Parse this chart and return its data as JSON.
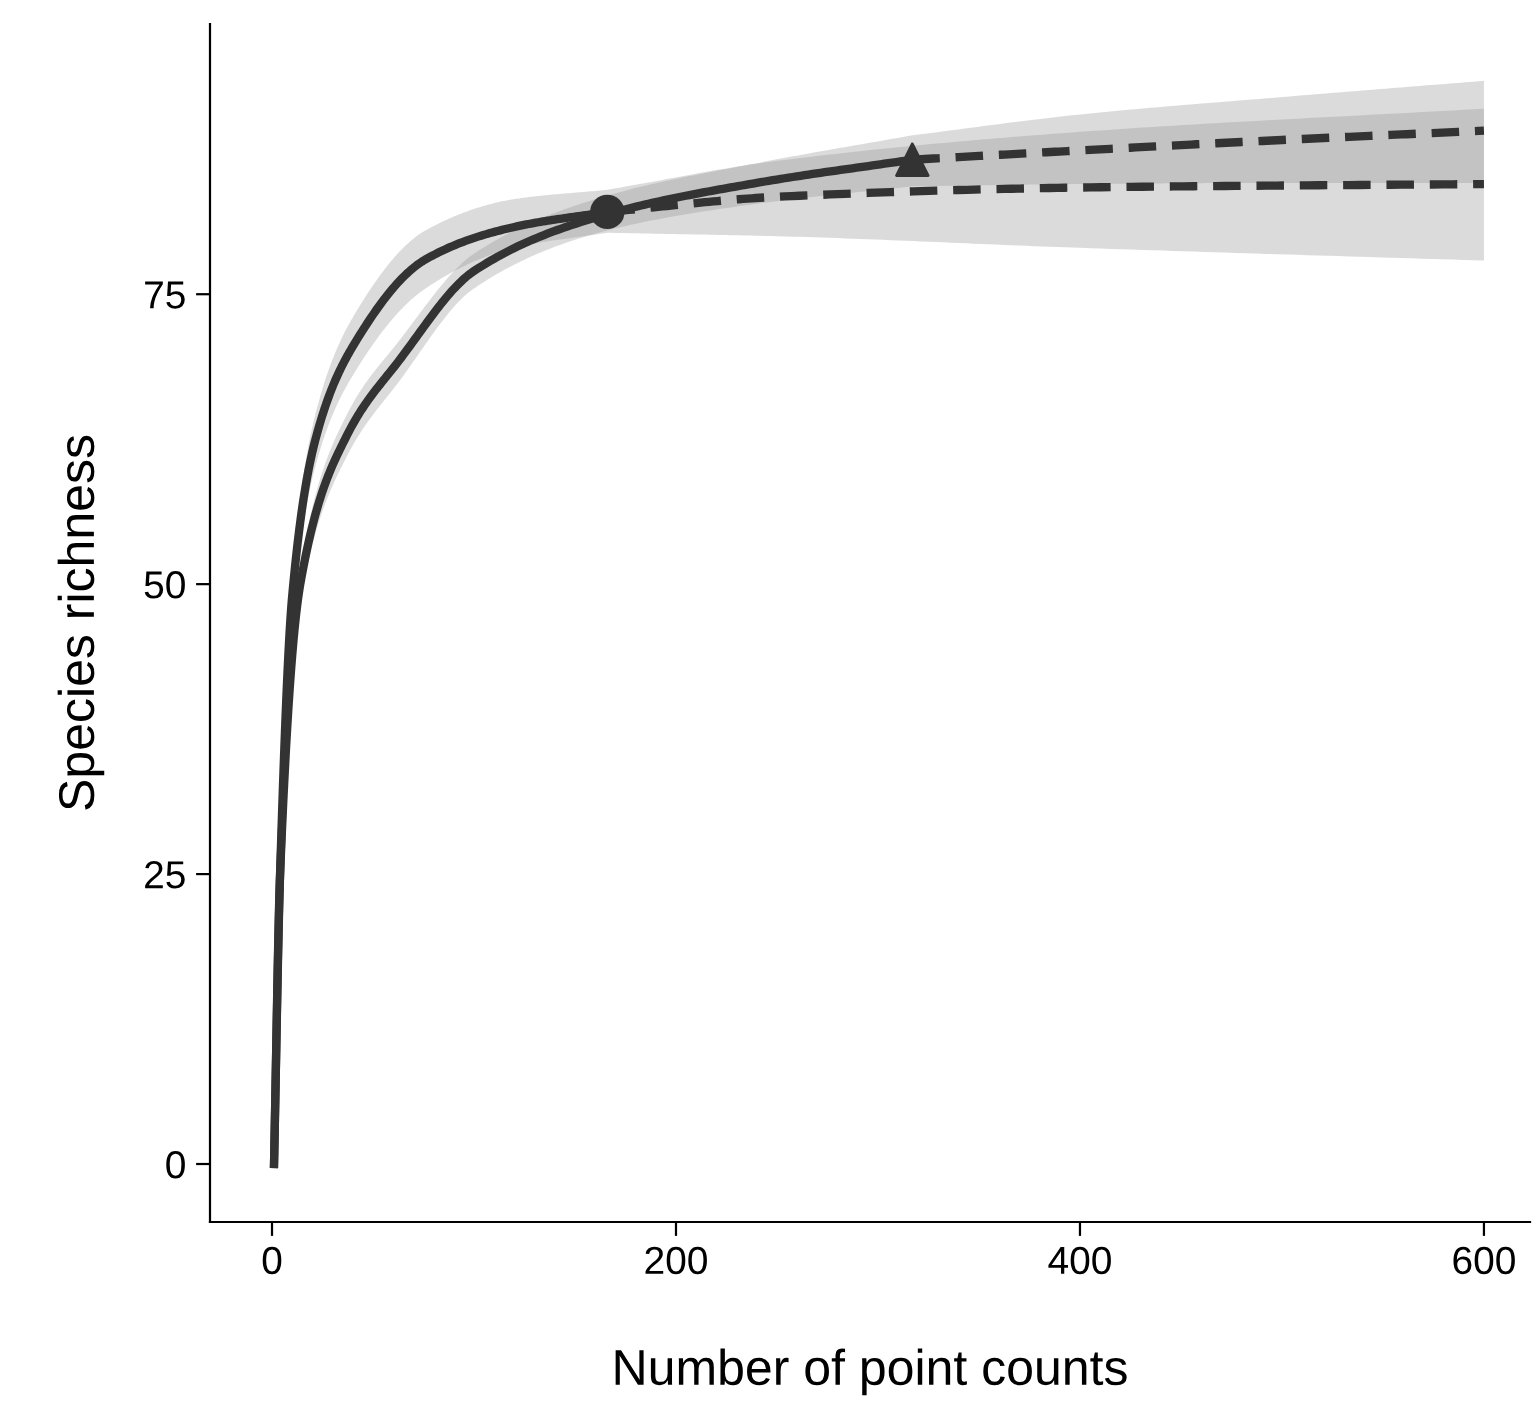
{
  "chart_data": {
    "type": "line",
    "xlabel": "Number of point counts",
    "ylabel": "Species richness",
    "xlim": [
      -30.7,
      622.8
    ],
    "ylim": [
      -5,
      98.3
    ],
    "xticks": [
      0,
      200,
      400,
      600
    ],
    "yticks": [
      0,
      25,
      50,
      75
    ],
    "grid": false,
    "legend": false,
    "series": [
      {
        "color": "#333333",
        "line_style": "solid",
        "x": [
          1,
          4,
          10,
          22,
          40,
          76,
          120,
          166
        ],
        "values": [
          0,
          25,
          49,
          62.8,
          70.5,
          78,
          80.8,
          82.1
        ],
        "lower": [
          0,
          24,
          47,
          60.5,
          68,
          75.5,
          79,
          80.3
        ],
        "upper": [
          0,
          26,
          51,
          65,
          73,
          80.5,
          83.2,
          84
        ]
      },
      {
        "color": "#333333",
        "line_style": "dashed",
        "x": [
          166,
          250,
          400,
          600
        ],
        "values": [
          82.1,
          83.4,
          84.2,
          84.5
        ],
        "lower": [
          80.3,
          80,
          79,
          77.9
        ],
        "upper": [
          84,
          86.5,
          89,
          91
        ]
      },
      {
        "color": "#333333",
        "line_style": "solid",
        "x": [
          1,
          4,
          14,
          37,
          63,
          100,
          166,
          240,
          317
        ],
        "values": [
          0,
          25,
          50,
          62.8,
          69.3,
          77,
          81.9,
          84.6,
          86.6
        ],
        "lower": [
          0,
          24,
          48.5,
          61,
          67.5,
          75.5,
          80.5,
          82.8,
          84.3
        ],
        "upper": [
          0,
          26,
          51.5,
          64.6,
          71,
          78.5,
          83.5,
          86.3,
          88.7
        ]
      },
      {
        "color": "#333333",
        "line_style": "dashed",
        "x": [
          317,
          400,
          500,
          600
        ],
        "values": [
          86.6,
          87.4,
          88.3,
          89.1
        ],
        "lower": [
          84.3,
          84.5,
          84.6,
          84.6
        ],
        "upper": [
          88.7,
          90.5,
          92,
          93.4
        ]
      },
      {
        "type": "scatter",
        "color": "#333333",
        "marker": "circle",
        "x": [
          166
        ],
        "values": [
          82.1
        ]
      },
      {
        "type": "scatter",
        "color": "#333333",
        "marker": "triangle",
        "x": [
          317
        ],
        "values": [
          86.6
        ]
      }
    ]
  }
}
